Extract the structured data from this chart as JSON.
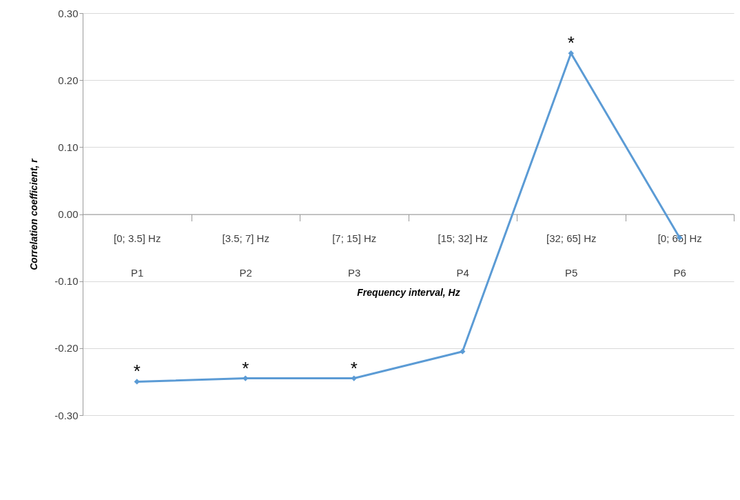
{
  "chart_data": {
    "type": "line",
    "xlabel": "Frequency interval, Hz",
    "ylabel": "Correlation coefficient, r",
    "categories": [
      "[0; 3.5] Hz\nP1",
      "[3.5; 7] Hz\nP2",
      "[7; 15] Hz\nP3",
      "[15; 32] Hz\nP4",
      "[32; 65] Hz\nP5",
      "[0; 65] Hz\nP6"
    ],
    "series": [
      {
        "color": "#5b9bd5",
        "values": [
          -0.25,
          -0.245,
          -0.245,
          -0.205,
          0.24,
          -0.035
        ]
      }
    ],
    "ylim": [
      -0.3,
      0.3
    ],
    "yticks": [
      {
        "value": -0.3,
        "label": "-0.30"
      },
      {
        "value": -0.2,
        "label": "-0.20"
      },
      {
        "value": -0.1,
        "label": "-0.10"
      },
      {
        "value": 0,
        "label": "0.00"
      },
      {
        "value": 0.1,
        "label": "0.10"
      },
      {
        "value": 0.2,
        "label": "0.20"
      },
      {
        "value": 0.3,
        "label": "0.30"
      }
    ],
    "grid": "y",
    "marker": "diamond",
    "line_style": "solid",
    "annotations": [
      {
        "text": "*",
        "x": "[0; 3.5] Hz\nP1",
        "y": -0.25
      },
      {
        "text": "*",
        "x": "[3.5; 7] Hz\nP2",
        "y": -0.245
      },
      {
        "text": "*",
        "x": "[7; 15] Hz\nP3",
        "y": -0.245
      },
      {
        "text": "*",
        "x": "[32; 65] Hz\nP5",
        "y": 0.24
      }
    ]
  }
}
